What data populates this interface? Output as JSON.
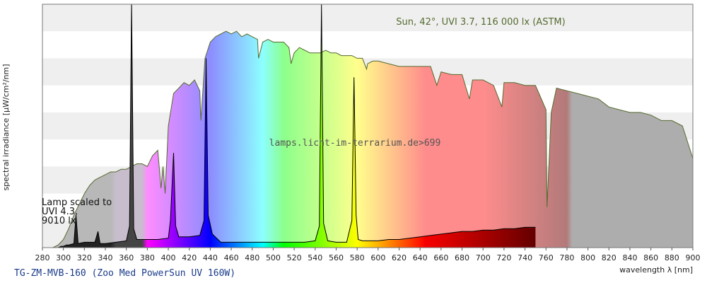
{
  "chart_data": {
    "type": "area",
    "title": "TG-ZM-MVB-160 (Zoo Med PowerSun UV 160W)",
    "xlabel": "wavelength λ [nm]",
    "ylabel": "spectral irradiance [µW/cm²/nm]",
    "xlim": [
      280,
      900
    ],
    "ylim": [
      0,
      90
    ],
    "x_ticks": [
      280,
      300,
      320,
      340,
      360,
      380,
      400,
      420,
      440,
      460,
      480,
      500,
      520,
      540,
      560,
      580,
      600,
      620,
      640,
      660,
      680,
      700,
      720,
      740,
      760,
      780,
      800,
      820,
      840,
      860,
      880,
      900
    ],
    "y_ticks": [
      0,
      20,
      40,
      60,
      80
    ],
    "y_tick_labels_shown": false,
    "grid": "horizontal bands",
    "annotations": {
      "sun": "Sun, 42°, UVI 3.7, 116 000 lx (ASTM)",
      "watermark": "lamps.licht-im-terrarium.de>699",
      "lamp_scale": [
        "Lamp scaled to",
        "UVI 4.3,",
        "9010 lx"
      ]
    },
    "series": [
      {
        "name": "Sun",
        "x": [
          290,
          295,
          300,
          305,
          310,
          315,
          320,
          325,
          330,
          335,
          340,
          345,
          350,
          355,
          360,
          365,
          370,
          375,
          380,
          385,
          390,
          393,
          395,
          397,
          400,
          405,
          410,
          415,
          420,
          425,
          430,
          431,
          435,
          440,
          445,
          450,
          455,
          460,
          465,
          470,
          475,
          480,
          485,
          486,
          490,
          495,
          500,
          505,
          510,
          515,
          517,
          520,
          525,
          530,
          535,
          540,
          545,
          550,
          555,
          560,
          565,
          570,
          575,
          580,
          585,
          589,
          590,
          595,
          600,
          610,
          620,
          630,
          640,
          650,
          656,
          660,
          670,
          680,
          687,
          690,
          700,
          710,
          718,
          720,
          730,
          740,
          750,
          760,
          761,
          765,
          770,
          780,
          790,
          800,
          810,
          820,
          830,
          840,
          850,
          860,
          870,
          880,
          890,
          900
        ],
        "values": [
          0,
          1,
          3,
          7,
          12,
          16,
          20,
          23,
          25,
          26,
          27,
          28,
          28,
          29,
          29,
          30,
          31,
          31,
          30,
          34,
          36,
          22,
          30,
          20,
          45,
          57,
          59,
          61,
          60,
          62,
          58,
          47,
          70,
          76,
          78,
          79,
          80,
          79,
          80,
          78,
          79,
          78,
          77,
          70,
          76,
          77,
          76,
          76,
          76,
          74,
          68,
          72,
          74,
          73,
          72,
          72,
          72,
          73,
          72,
          72,
          71,
          71,
          71,
          70,
          70,
          66,
          68,
          69,
          69,
          68,
          67,
          67,
          67,
          67,
          60,
          65,
          64,
          64,
          55,
          62,
          62,
          60,
          52,
          61,
          61,
          60,
          60,
          51,
          15,
          50,
          59,
          58,
          57,
          56,
          55,
          52,
          51,
          50,
          50,
          49,
          47,
          47,
          45,
          33
        ]
      },
      {
        "name": "Lamp",
        "x": [
          280,
          295,
          298,
          300,
          303,
          305,
          310,
          312,
          314,
          320,
          330,
          333,
          335,
          340,
          350,
          360,
          363,
          365,
          367,
          370,
          380,
          390,
          400,
          402,
          405,
          407,
          410,
          420,
          430,
          434,
          436,
          438,
          442,
          450,
          460,
          470,
          480,
          490,
          500,
          510,
          520,
          530,
          540,
          544,
          546,
          548,
          552,
          560,
          570,
          575,
          577,
          579,
          581,
          585,
          590,
          600,
          610,
          620,
          630,
          640,
          650,
          660,
          670,
          680,
          690,
          700,
          710,
          720,
          730,
          740,
          750
        ],
        "values": [
          0,
          0,
          0.5,
          0.5,
          1,
          1,
          1.5,
          12,
          1.5,
          2,
          2,
          6,
          1.5,
          1.5,
          2,
          2.5,
          8,
          91,
          7,
          3,
          3,
          3,
          3.5,
          10,
          35,
          8,
          4,
          4,
          4.5,
          10,
          70,
          12,
          5,
          2,
          2,
          2,
          2,
          2,
          2,
          2,
          2,
          2,
          2.5,
          8,
          90,
          9,
          2.5,
          2,
          2,
          10,
          63,
          12,
          3,
          2.5,
          2.5,
          2.5,
          3,
          3,
          3.5,
          4,
          4.5,
          5,
          5.5,
          6,
          6,
          6.5,
          6.5,
          7,
          7,
          7.5,
          7.5
        ]
      }
    ]
  }
}
